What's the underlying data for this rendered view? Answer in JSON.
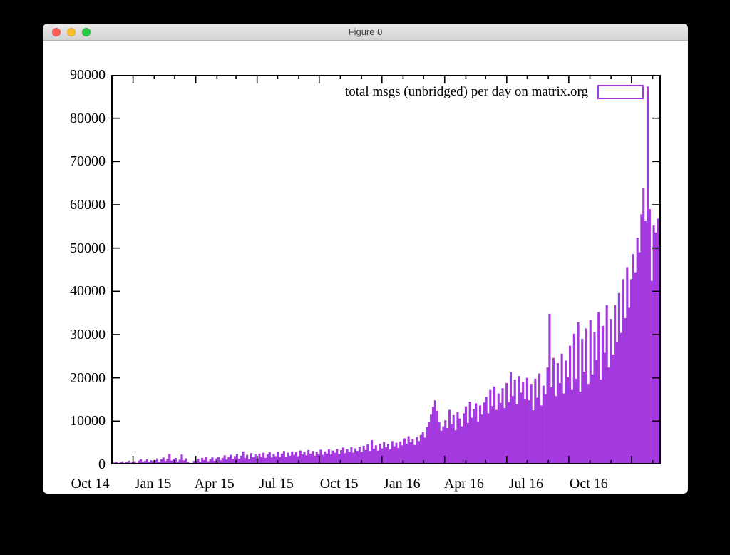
{
  "window": {
    "title": "Figure 0",
    "buttons": {
      "close": "close",
      "minimize": "minimize",
      "zoom": "zoom"
    }
  },
  "chart_data": {
    "type": "bar",
    "title": "",
    "legend": {
      "label": "total msgs (unbridged) per day on matrix.org",
      "position": "top-right",
      "style": "box-outline"
    },
    "bar_color": "#a339de",
    "axis_color": "#000000",
    "grid": false,
    "y_axis": {
      "min": 0,
      "max": 90000,
      "step": 10000,
      "labels": [
        "0",
        "10000",
        "20000",
        "30000",
        "40000",
        "50000",
        "60000",
        "70000",
        "80000",
        "90000"
      ]
    },
    "x_axis": {
      "span_days": 806,
      "major_ticks": [
        {
          "label": "Oct 14",
          "day": 32
        },
        {
          "label": "Jan 15",
          "day": 124
        },
        {
          "label": "Apr 15",
          "day": 214
        },
        {
          "label": "Jul 15",
          "day": 305
        },
        {
          "label": "Oct 15",
          "day": 397
        },
        {
          "label": "Jan 16",
          "day": 489
        },
        {
          "label": "Apr 16",
          "day": 580
        },
        {
          "label": "Jul 16",
          "day": 671
        },
        {
          "label": "Oct 16",
          "day": 763
        }
      ],
      "minor_tick_days": [
        2,
        63,
        93,
        155,
        183,
        244,
        275,
        336,
        367,
        428,
        458,
        520,
        549,
        610,
        641,
        702,
        733,
        794
      ]
    },
    "sample_step_days": 3,
    "samples": [
      150,
      420,
      650,
      300,
      480,
      700,
      250,
      550,
      850,
      400,
      600,
      700,
      350,
      900,
      1150,
      500,
      800,
      1200,
      600,
      950,
      750,
      1000,
      1400,
      650,
      1150,
      1600,
      800,
      1300,
      2400,
      900,
      1200,
      1500,
      700,
      1100,
      2300,
      950,
      1400,
      600,
      350,
      250,
      800,
      900,
      1300,
      550,
      1500,
      1000,
      1700,
      750,
      1200,
      1600,
      850,
      1400,
      1800,
      950,
      1500,
      2100,
      1100,
      1700,
      2200,
      1250,
      1900,
      2400,
      1300,
      2000,
      3000,
      1500,
      2200,
      1200,
      2600,
      1700,
      2300,
      1400,
      2500,
      1800,
      2700,
      1500,
      2300,
      2800,
      1600,
      2400,
      1900,
      2900,
      1700,
      2500,
      3100,
      1800,
      2700,
      2000,
      3000,
      2200,
      2800,
      1900,
      3200,
      2300,
      2900,
      2100,
      3300,
      2500,
      3100,
      2000,
      2900,
      2400,
      3400,
      2200,
      3000,
      2500,
      3500,
      2300,
      3200,
      2700,
      3600,
      2400,
      3300,
      3900,
      2600,
      3500,
      2900,
      4000,
      2700,
      3700,
      3100,
      4100,
      2900,
      4300,
      3300,
      4600,
      3100,
      5600,
      3600,
      4400,
      3200,
      4800,
      3700,
      5200,
      4000,
      4700,
      3500,
      5400,
      4200,
      5000,
      3800,
      5300,
      4400,
      6000,
      4800,
      6500,
      5100,
      5800,
      4500,
      6300,
      5400,
      6800,
      7400,
      6200,
      8600,
      9800,
      11500,
      13300,
      14800,
      12400,
      9700,
      7800,
      8800,
      10200,
      8400,
      12600,
      9300,
      11400,
      7900,
      12100,
      10600,
      8800,
      11800,
      13400,
      9600,
      14500,
      10800,
      12800,
      14100,
      9900,
      13600,
      11500,
      14300,
      15600,
      11800,
      17200,
      13500,
      18000,
      12600,
      16400,
      14200,
      17600,
      13000,
      18800,
      14400,
      21300,
      15800,
      19600,
      13900,
      20400,
      16600,
      19000,
      15000,
      20000,
      14800,
      18600,
      12500,
      19800,
      15400,
      21000,
      13600,
      18200,
      16200,
      22400,
      34800,
      17800,
      24600,
      15800,
      23400,
      18800,
      25600,
      16400,
      24000,
      20200,
      27400,
      17200,
      30200,
      19800,
      32800,
      16800,
      29000,
      21400,
      31400,
      18600,
      33400,
      20800,
      30600,
      24200,
      35200,
      19600,
      32000,
      25800,
      36800,
      22400,
      33600,
      25400,
      36800,
      28200,
      39600,
      30400,
      42800,
      33800,
      45600,
      36200,
      42800,
      48600,
      44400,
      52400,
      49000,
      57800,
      63800,
      56200,
      87300,
      59000,
      42400,
      55200,
      53600,
      56800,
      50400
    ]
  }
}
